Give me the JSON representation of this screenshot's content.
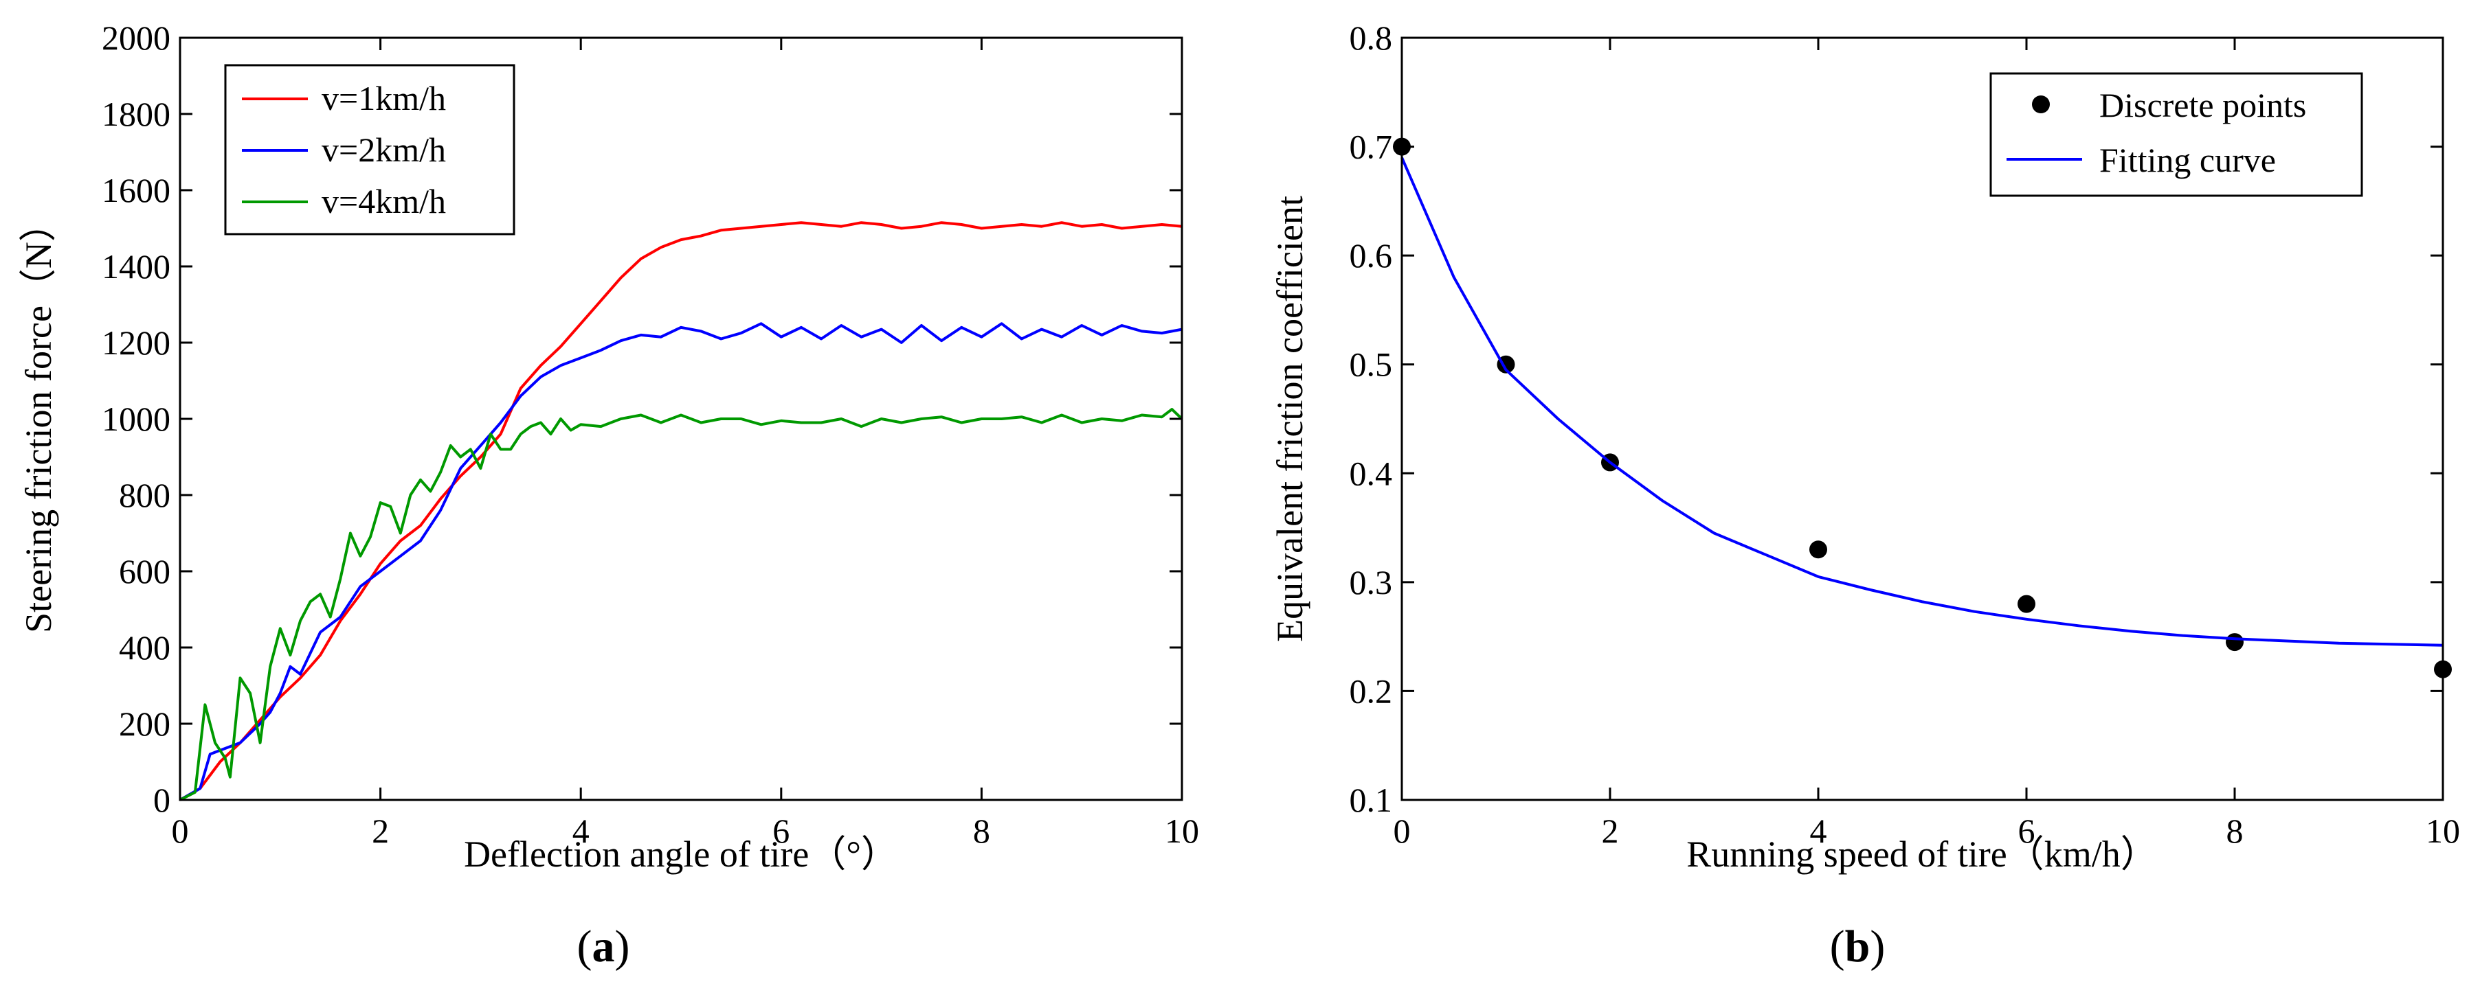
{
  "chart_data": [
    {
      "type": "line",
      "panel_label": "a",
      "title": "",
      "xlabel": "Deflection angle of tire（°）",
      "ylabel": "Steering friction force（N）",
      "xlim": [
        0,
        10
      ],
      "ylim": [
        0,
        2000
      ],
      "xticks": [
        0,
        2,
        4,
        6,
        8,
        10
      ],
      "yticks": [
        0,
        200,
        400,
        600,
        800,
        1000,
        1200,
        1400,
        1600,
        1800,
        2000
      ],
      "grid": false,
      "legend_position": "top-left",
      "series": [
        {
          "name": "v=1km/h",
          "color": "#ff0000",
          "x": [
            0,
            0.2,
            0.4,
            0.6,
            0.8,
            1.0,
            1.2,
            1.4,
            1.6,
            1.8,
            2.0,
            2.2,
            2.4,
            2.6,
            2.8,
            3.0,
            3.2,
            3.4,
            3.6,
            3.8,
            4.0,
            4.2,
            4.4,
            4.6,
            4.8,
            5.0,
            5.2,
            5.4,
            5.6,
            5.8,
            6.0,
            6.2,
            6.4,
            6.6,
            6.8,
            7.0,
            7.2,
            7.4,
            7.6,
            7.8,
            8.0,
            8.2,
            8.4,
            8.6,
            8.8,
            9.0,
            9.2,
            9.4,
            9.6,
            9.8,
            10.0
          ],
          "y": [
            0,
            30,
            100,
            150,
            210,
            270,
            320,
            380,
            470,
            540,
            620,
            680,
            720,
            790,
            850,
            900,
            960,
            1080,
            1140,
            1190,
            1250,
            1310,
            1370,
            1420,
            1450,
            1470,
            1480,
            1495,
            1500,
            1505,
            1510,
            1515,
            1510,
            1505,
            1515,
            1510,
            1500,
            1505,
            1515,
            1510,
            1500,
            1505,
            1510,
            1505,
            1515,
            1505,
            1510,
            1500,
            1505,
            1510,
            1505
          ]
        },
        {
          "name": "v=2km/h",
          "color": "#0000ff",
          "x": [
            0,
            0.2,
            0.3,
            0.4,
            0.6,
            0.8,
            0.9,
            1.0,
            1.1,
            1.2,
            1.4,
            1.6,
            1.8,
            2.0,
            2.2,
            2.4,
            2.6,
            2.8,
            3.0,
            3.2,
            3.4,
            3.6,
            3.8,
            4.0,
            4.2,
            4.4,
            4.6,
            4.8,
            5.0,
            5.2,
            5.4,
            5.6,
            5.8,
            6.0,
            6.2,
            6.4,
            6.6,
            6.8,
            7.0,
            7.2,
            7.4,
            7.6,
            7.8,
            8.0,
            8.2,
            8.4,
            8.6,
            8.8,
            9.0,
            9.2,
            9.4,
            9.6,
            9.8,
            10.0
          ],
          "y": [
            0,
            30,
            120,
            130,
            150,
            200,
            230,
            280,
            350,
            330,
            440,
            480,
            560,
            600,
            640,
            680,
            760,
            870,
            930,
            990,
            1060,
            1110,
            1140,
            1160,
            1180,
            1205,
            1220,
            1215,
            1240,
            1230,
            1210,
            1225,
            1250,
            1215,
            1240,
            1210,
            1245,
            1215,
            1235,
            1200,
            1245,
            1205,
            1240,
            1215,
            1250,
            1210,
            1235,
            1215,
            1245,
            1220,
            1245,
            1230,
            1225,
            1235
          ]
        },
        {
          "name": "v=4km/h",
          "color": "#009900",
          "x": [
            0,
            0.15,
            0.25,
            0.35,
            0.45,
            0.5,
            0.6,
            0.7,
            0.8,
            0.9,
            1.0,
            1.1,
            1.2,
            1.3,
            1.4,
            1.5,
            1.6,
            1.7,
            1.8,
            1.9,
            2.0,
            2.1,
            2.2,
            2.3,
            2.4,
            2.5,
            2.6,
            2.7,
            2.8,
            2.9,
            3.0,
            3.1,
            3.2,
            3.3,
            3.4,
            3.5,
            3.6,
            3.7,
            3.8,
            3.9,
            4.0,
            4.2,
            4.4,
            4.6,
            4.8,
            5.0,
            5.2,
            5.4,
            5.6,
            5.8,
            6.0,
            6.2,
            6.4,
            6.6,
            6.8,
            7.0,
            7.2,
            7.4,
            7.6,
            7.8,
            8.0,
            8.2,
            8.4,
            8.6,
            8.8,
            9.0,
            9.2,
            9.4,
            9.6,
            9.8,
            9.9,
            10.0
          ],
          "y": [
            0,
            20,
            250,
            150,
            110,
            60,
            320,
            280,
            150,
            350,
            450,
            380,
            470,
            520,
            540,
            480,
            580,
            700,
            640,
            690,
            780,
            770,
            700,
            800,
            840,
            810,
            860,
            930,
            900,
            920,
            870,
            960,
            920,
            920,
            960,
            980,
            990,
            960,
            1000,
            970,
            985,
            980,
            1000,
            1010,
            990,
            1010,
            990,
            1000,
            1000,
            985,
            995,
            990,
            990,
            1000,
            980,
            1000,
            990,
            1000,
            1005,
            990,
            1000,
            1000,
            1005,
            990,
            1010,
            990,
            1000,
            995,
            1010,
            1005,
            1025,
            1000
          ]
        }
      ]
    },
    {
      "type": "scatter",
      "panel_label": "b",
      "title": "",
      "xlabel": "Running speed of tire（km/h）",
      "ylabel": "Equivalent friction coefficient",
      "xlim": [
        0,
        10
      ],
      "ylim": [
        0.1,
        0.8
      ],
      "xticks": [
        0,
        2,
        4,
        6,
        8,
        10
      ],
      "yticks": [
        0.1,
        0.2,
        0.3,
        0.4,
        0.5,
        0.6,
        0.7,
        0.8
      ],
      "grid": false,
      "legend_position": "top-right",
      "series": [
        {
          "name": "Discrete points",
          "kind": "scatter",
          "color": "#000000",
          "x": [
            0,
            1,
            2,
            4,
            6,
            8,
            10
          ],
          "y": [
            0.7,
            0.5,
            0.41,
            0.33,
            0.28,
            0.245,
            0.22
          ]
        },
        {
          "name": "Fitting curve",
          "kind": "line",
          "color": "#0000ff",
          "x": [
            0,
            0.5,
            1,
            1.5,
            2,
            2.5,
            3,
            3.5,
            4,
            4.5,
            5,
            5.5,
            6,
            6.5,
            7,
            7.5,
            8,
            8.5,
            9,
            9.5,
            10
          ],
          "y": [
            0.69,
            0.58,
            0.495,
            0.45,
            0.41,
            0.375,
            0.345,
            0.325,
            0.305,
            0.293,
            0.282,
            0.273,
            0.266,
            0.26,
            0.255,
            0.251,
            0.248,
            0.246,
            0.244,
            0.243,
            0.242
          ]
        }
      ]
    }
  ],
  "captions": [
    {
      "open": "(",
      "label": "a",
      "close": ")"
    },
    {
      "open": "(",
      "label": "b",
      "close": ")"
    }
  ]
}
